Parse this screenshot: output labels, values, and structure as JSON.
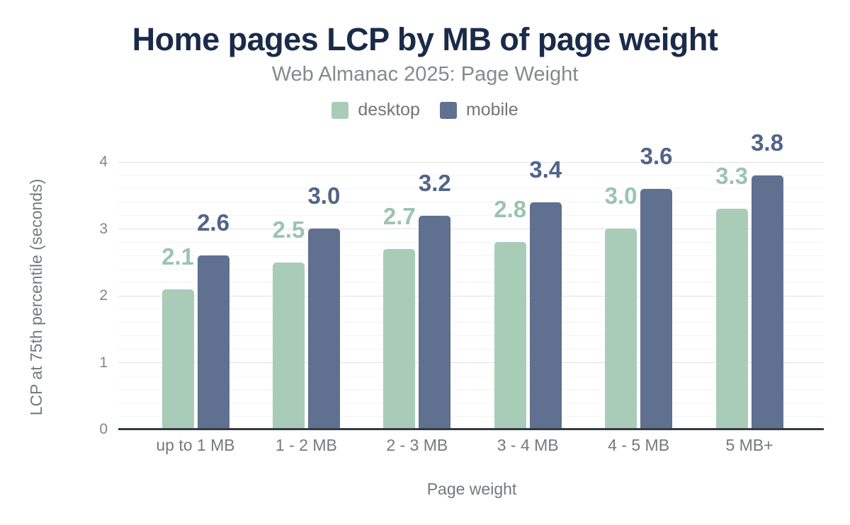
{
  "header": {
    "title": "Home pages LCP by MB of page weight",
    "subtitle": "Web Almanac 2025: Page Weight"
  },
  "chart_data": {
    "type": "bar",
    "title": "Home pages LCP by MB of page weight",
    "subtitle": "Web Almanac 2025: Page Weight",
    "xlabel": "Page weight",
    "ylabel": "LCP at 75th percentile (seconds)",
    "categories": [
      "up to 1 MB",
      "1 - 2 MB",
      "2 - 3 MB",
      "3 - 4 MB",
      "4 - 5 MB",
      "5 MB+"
    ],
    "series": [
      {
        "name": "desktop",
        "color": "#a9ccb8",
        "label_color": "#9bc4b0",
        "values": [
          2.1,
          2.5,
          2.7,
          2.8,
          3.0,
          3.3
        ]
      },
      {
        "name": "mobile",
        "color": "#5f7090",
        "label_color": "#516489",
        "values": [
          2.6,
          3.0,
          3.2,
          3.4,
          3.6,
          3.8
        ]
      }
    ],
    "ylim": [
      0,
      4
    ],
    "yticks": [
      0,
      1,
      2,
      3,
      4
    ],
    "grid": {
      "major_interval": 1,
      "minor_interval": 0.2,
      "visible": true
    },
    "legend_position": "top",
    "value_labels": true
  },
  "colors": {
    "title": "#1a2b49",
    "subtitle": "#85898d",
    "legend_text": "#757575",
    "axis_text": "#75797d",
    "tick_text": "#81868b",
    "grid_major": "#e2e2e2",
    "grid_minor": "#f3f3f3",
    "axis_line": "#343b44",
    "background": "#ffffff"
  }
}
